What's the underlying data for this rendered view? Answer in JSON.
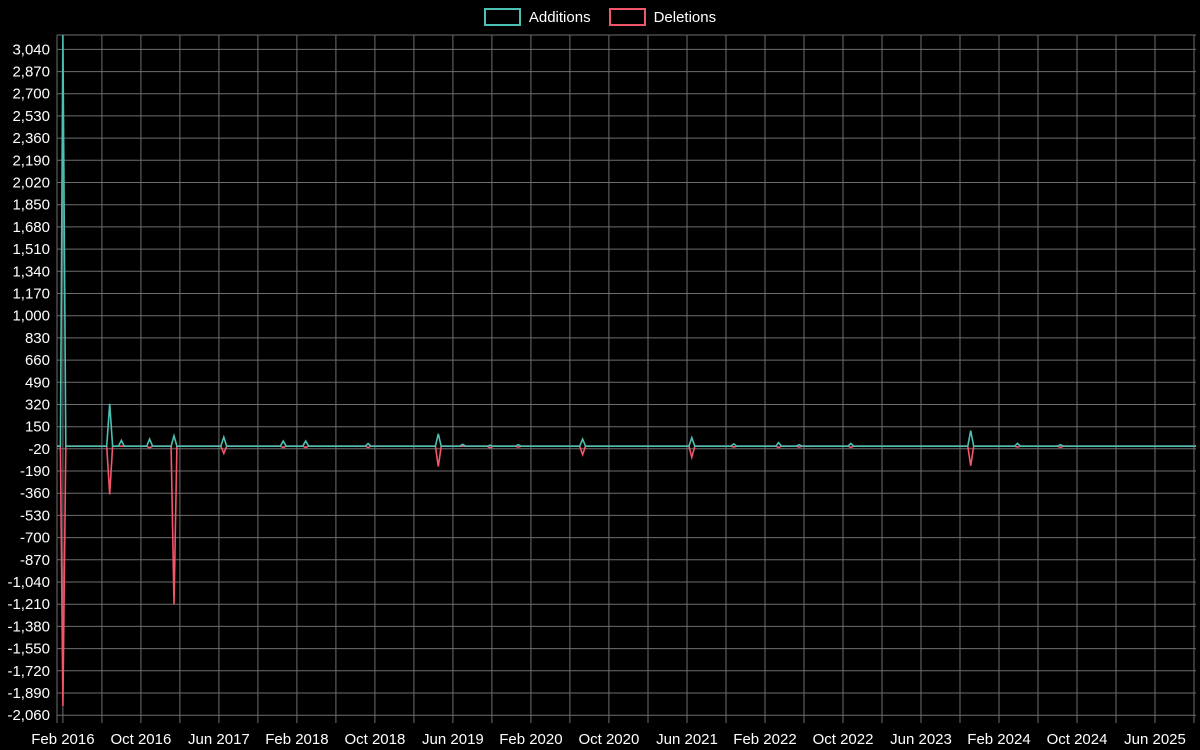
{
  "page": {
    "background": "#000000"
  },
  "chart_data": {
    "type": "line",
    "title": "",
    "description": "Code frequency style chart of weekly additions and deletions over time",
    "legend_position": "top-center",
    "grid": true,
    "colors": {
      "background": "#000000",
      "grid": "#6e6e6e",
      "text": "#ffffff"
    },
    "series": [
      {
        "name": "Additions",
        "color": "#4cc0b2"
      },
      {
        "name": "Deletions",
        "color": "#f2566b"
      }
    ],
    "x_axis": {
      "label": "",
      "domain_months": [
        -0.6,
        116.2
      ],
      "grid_step_months": 4,
      "grid_start": 0,
      "ticks": [
        {
          "m": 0,
          "label": "Feb 2016"
        },
        {
          "m": 8,
          "label": "Oct 2016"
        },
        {
          "m": 16,
          "label": "Jun 2017"
        },
        {
          "m": 24,
          "label": "Feb 2018"
        },
        {
          "m": 32,
          "label": "Oct 2018"
        },
        {
          "m": 40,
          "label": "Jun 2019"
        },
        {
          "m": 48,
          "label": "Feb 2020"
        },
        {
          "m": 56,
          "label": "Oct 2020"
        },
        {
          "m": 64,
          "label": "Jun 2021"
        },
        {
          "m": 72,
          "label": "Feb 2022"
        },
        {
          "m": 80,
          "label": "Oct 2022"
        },
        {
          "m": 88,
          "label": "Jun 2023"
        },
        {
          "m": 96,
          "label": "Feb 2024"
        },
        {
          "m": 104,
          "label": "Oct 2024"
        },
        {
          "m": 112,
          "label": "Jun 2025"
        }
      ]
    },
    "y_axis": {
      "label": "",
      "min": -2120,
      "max": 3150,
      "tick_step": 170,
      "ticks": [
        3040,
        2870,
        2700,
        2530,
        2360,
        2190,
        2020,
        1850,
        1680,
        1510,
        1340,
        1170,
        1000,
        830,
        660,
        490,
        320,
        150,
        -20,
        -190,
        -360,
        -530,
        -700,
        -870,
        -1040,
        -1210,
        -1380,
        -1550,
        -1720,
        -1890,
        -2060
      ]
    },
    "points_format": [
      "month_offset_from_feb_2016",
      "additions",
      "deletions"
    ],
    "points": [
      [
        -0.6,
        0,
        0
      ],
      [
        -0.25,
        0,
        0
      ],
      [
        0,
        3150,
        -1990
      ],
      [
        0.3,
        0,
        0
      ],
      [
        4.5,
        0,
        0
      ],
      [
        4.8,
        325,
        -370
      ],
      [
        5.1,
        0,
        0
      ],
      [
        5.7,
        0,
        0
      ],
      [
        6.0,
        45,
        0
      ],
      [
        6.3,
        0,
        0
      ],
      [
        8.6,
        0,
        0
      ],
      [
        8.9,
        55,
        -12
      ],
      [
        9.2,
        0,
        0
      ],
      [
        11.1,
        0,
        0
      ],
      [
        11.4,
        80,
        -1210
      ],
      [
        11.7,
        0,
        0
      ],
      [
        16.2,
        0,
        0
      ],
      [
        16.5,
        70,
        -55
      ],
      [
        16.8,
        0,
        0
      ],
      [
        22.3,
        0,
        0
      ],
      [
        22.6,
        40,
        -10
      ],
      [
        22.9,
        0,
        0
      ],
      [
        24.6,
        0,
        0
      ],
      [
        24.9,
        40,
        -10
      ],
      [
        25.2,
        0,
        0
      ],
      [
        31.0,
        0,
        0
      ],
      [
        31.3,
        20,
        -10
      ],
      [
        31.6,
        0,
        0
      ],
      [
        38.2,
        0,
        0
      ],
      [
        38.5,
        95,
        -155
      ],
      [
        38.8,
        0,
        0
      ],
      [
        40.7,
        0,
        0
      ],
      [
        41.0,
        15,
        0
      ],
      [
        41.3,
        0,
        0
      ],
      [
        43.5,
        0,
        0
      ],
      [
        43.8,
        8,
        -12
      ],
      [
        44.1,
        0,
        0
      ],
      [
        46.4,
        0,
        0
      ],
      [
        46.7,
        12,
        -6
      ],
      [
        47.0,
        0,
        0
      ],
      [
        53.0,
        0,
        0
      ],
      [
        53.3,
        55,
        -65
      ],
      [
        53.6,
        0,
        0
      ],
      [
        64.2,
        0,
        0
      ],
      [
        64.5,
        65,
        -85
      ],
      [
        64.8,
        0,
        0
      ],
      [
        68.5,
        0,
        0
      ],
      [
        68.8,
        18,
        -6
      ],
      [
        69.1,
        0,
        0
      ],
      [
        73.1,
        0,
        0
      ],
      [
        73.4,
        28,
        -10
      ],
      [
        73.7,
        0,
        0
      ],
      [
        75.2,
        0,
        0
      ],
      [
        75.5,
        12,
        -6
      ],
      [
        75.8,
        0,
        0
      ],
      [
        80.5,
        0,
        0
      ],
      [
        80.8,
        22,
        -8
      ],
      [
        81.1,
        0,
        0
      ],
      [
        92.8,
        0,
        0
      ],
      [
        93.1,
        120,
        -150
      ],
      [
        93.4,
        0,
        0
      ],
      [
        97.6,
        0,
        0
      ],
      [
        97.9,
        22,
        -6
      ],
      [
        98.2,
        0,
        0
      ],
      [
        102.0,
        0,
        0
      ],
      [
        102.3,
        12,
        -8
      ],
      [
        102.6,
        0,
        0
      ],
      [
        116.2,
        0,
        0
      ]
    ]
  }
}
